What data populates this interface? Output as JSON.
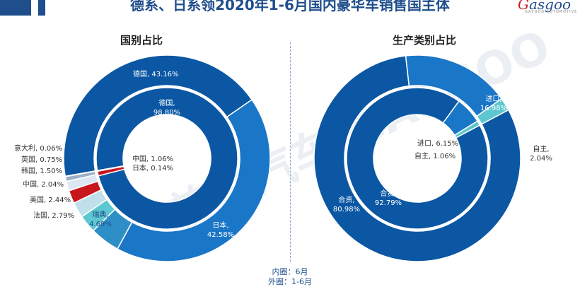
{
  "header": {
    "title": "德系、日系领2020年1-6月国内豪华车销售国主体",
    "logo_main": "asgoo",
    "logo_accent": "G",
    "logo_sub": "GASGOO AUTOMOTIVE"
  },
  "watermark": "盖世汽车 GASGOO",
  "legend_note": {
    "inner": "内圈：6月",
    "outer": "外圈：1-6月"
  },
  "chart_data": [
    {
      "type": "pie",
      "subtype": "donut-double",
      "title": "国别占比",
      "outer_ring": {
        "name": "1-6月",
        "slices": [
          {
            "label": "德国",
            "value": 43.16,
            "text": "德国, 43.16%",
            "color": "#0b57a3"
          },
          {
            "label": "日本",
            "value": 42.58,
            "text": "日本,\n42.58%",
            "color": "#1a76c7"
          },
          {
            "label": "瑞典",
            "value": 4.69,
            "text": "瑞典,\n4.69%",
            "color": "#2e8fc7"
          },
          {
            "label": "法国",
            "value": 2.79,
            "text": "法国, 2.79%",
            "color": "#5cc7d0"
          },
          {
            "label": "美国",
            "value": 2.44,
            "text": "美国, 2.44%",
            "color": "#bfe0eb"
          },
          {
            "label": "中国",
            "value": 2.04,
            "text": "中国, 2.04%",
            "color": "#c8161d"
          },
          {
            "label": "韩国",
            "value": 1.5,
            "text": "韩国, 1.50%",
            "color": "#dde7f2"
          },
          {
            "label": "英国",
            "value": 0.75,
            "text": "英国, 0.75%",
            "color": "#9ab0c8"
          },
          {
            "label": "意大利",
            "value": 0.06,
            "text": "意大利, 0.06%",
            "color": "#6d7f93"
          }
        ]
      },
      "inner_ring": {
        "name": "6月",
        "slices": [
          {
            "label": "德国",
            "value": 98.8,
            "text": "德国,\n98.80%",
            "color": "#0b57a3"
          },
          {
            "label": "中国",
            "value": 1.06,
            "text": "中国, 1.06%",
            "color": "#c8161d"
          },
          {
            "label": "日本",
            "value": 0.14,
            "text": "日本, 0.14%",
            "color": "#1a76c7"
          }
        ]
      }
    },
    {
      "type": "pie",
      "subtype": "donut-double",
      "title": "生产类别占比",
      "outer_ring": {
        "name": "1-6月",
        "slices": [
          {
            "label": "合资",
            "value": 80.98,
            "text": "合资,\n80.98%",
            "color": "#0b57a3"
          },
          {
            "label": "进口",
            "value": 16.98,
            "text": "进口,\n16.98%",
            "color": "#1a76c7"
          },
          {
            "label": "自主",
            "value": 2.04,
            "text": "自主,\n2.04%",
            "color": "#5cc7d0"
          }
        ]
      },
      "inner_ring": {
        "name": "6月",
        "slices": [
          {
            "label": "合资",
            "value": 92.79,
            "text": "合资,\n92.79%",
            "color": "#0b57a3"
          },
          {
            "label": "进口",
            "value": 6.15,
            "text": "进口, 6.15%",
            "color": "#1a76c7"
          },
          {
            "label": "自主",
            "value": 1.06,
            "text": "自主, 1.06%",
            "color": "#5cc7d0"
          }
        ]
      }
    }
  ]
}
